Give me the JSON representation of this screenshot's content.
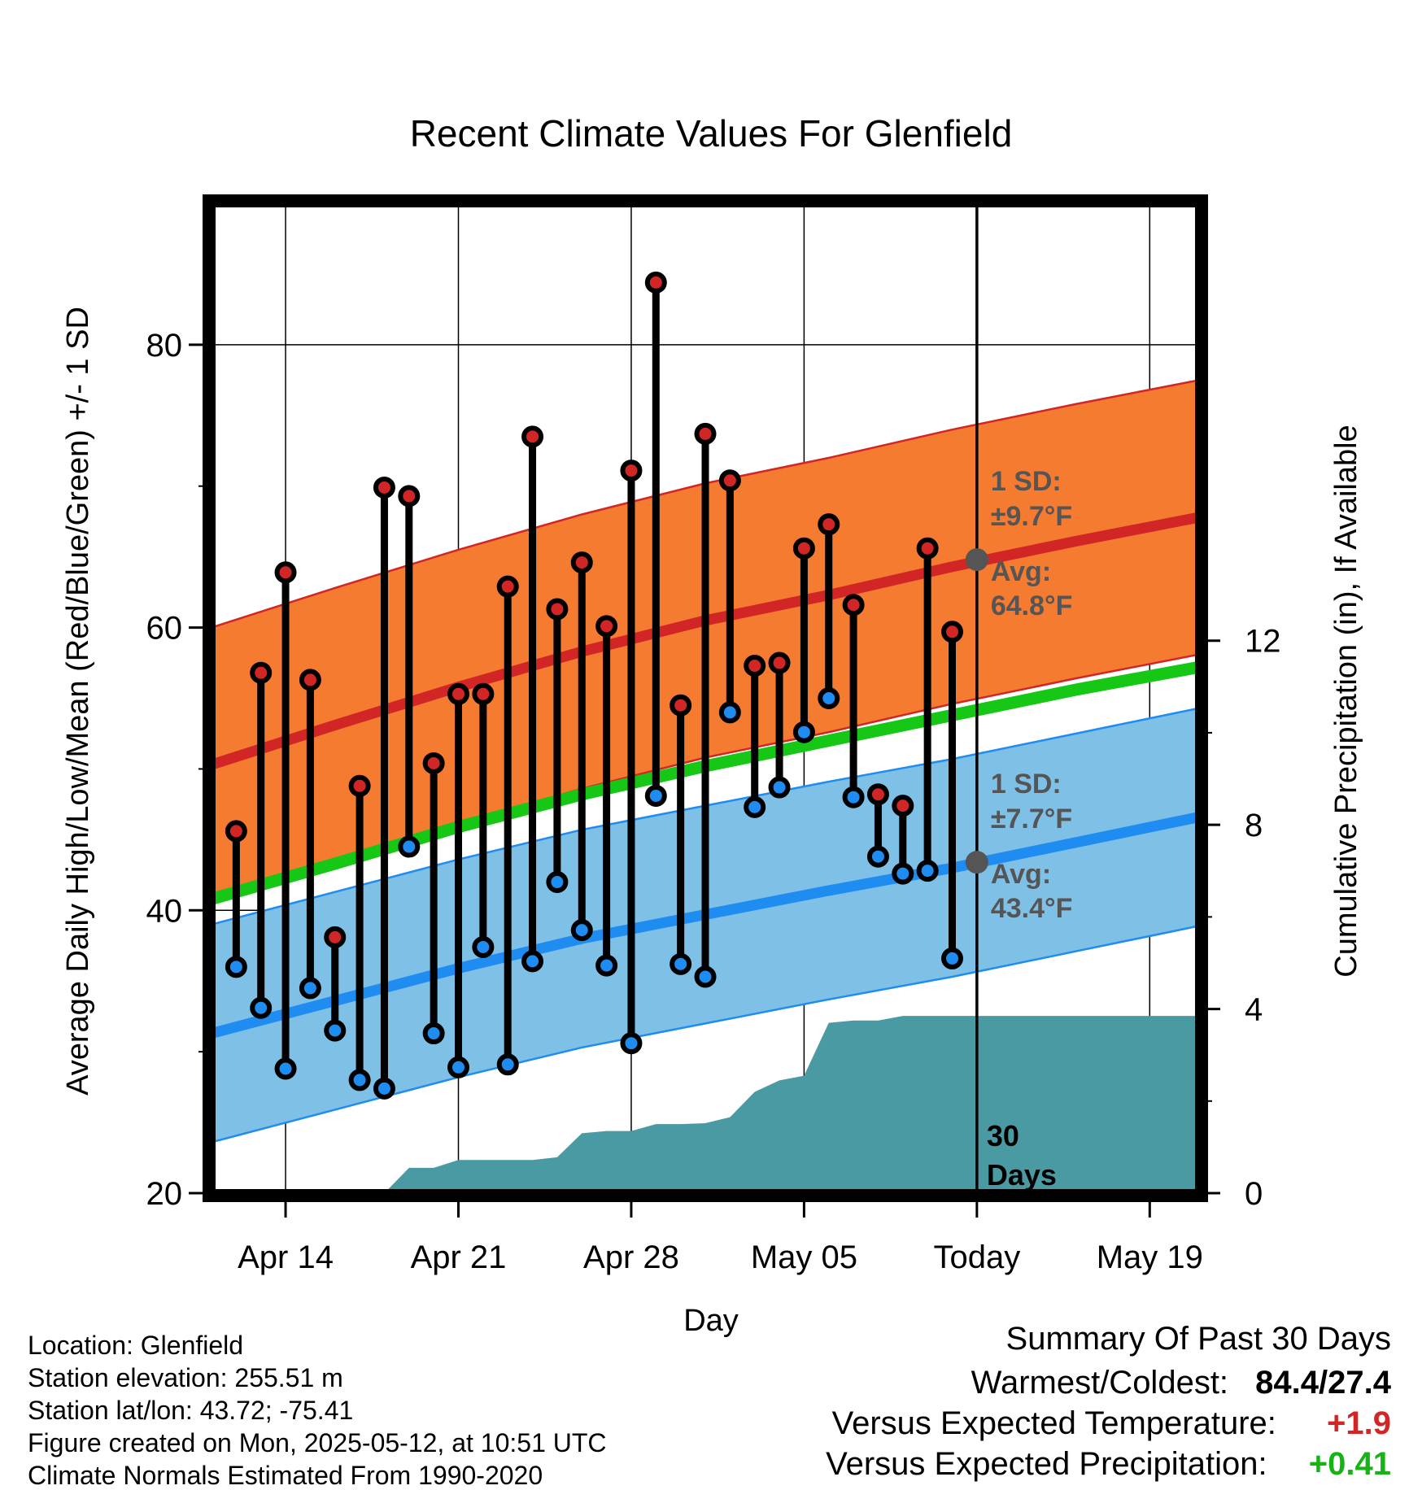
{
  "chart_data": {
    "type": "line",
    "title": "Recent Climate Values For Glenfield",
    "xlabel": "Day",
    "ylabel": "Average Daily High/Low/Mean (Red/Blue/Green) +/- 1 SD",
    "y2label": "Cumulative Precipitation (in), If Available",
    "ylim": [
      20,
      90
    ],
    "y2lim": [
      0,
      21.5
    ],
    "yticks": [
      20,
      40,
      60,
      80
    ],
    "y2ticks": [
      0,
      4,
      8,
      12
    ],
    "xlim": [
      "2025-04-11",
      "2025-05-21"
    ],
    "xticks": [
      {
        "date": "2025-04-14",
        "label": "Apr 14"
      },
      {
        "date": "2025-04-21",
        "label": "Apr 21"
      },
      {
        "date": "2025-04-28",
        "label": "Apr 28"
      },
      {
        "date": "2025-05-05",
        "label": "May 05"
      },
      {
        "date": "2025-05-12",
        "label": "Today"
      },
      {
        "date": "2025-05-19",
        "label": "May 19"
      }
    ],
    "grid": true,
    "today_marker": {
      "date": "2025-05-12",
      "label_line1": "30",
      "label_line2": "Days"
    },
    "normal_high": {
      "dates": [
        "2025-04-11",
        "2025-04-16",
        "2025-04-21",
        "2025-04-26",
        "2025-05-01",
        "2025-05-06",
        "2025-05-11",
        "2025-05-16",
        "2025-05-21"
      ],
      "mean": [
        50.3,
        53.1,
        55.8,
        58.3,
        60.5,
        62.3,
        64.3,
        66.1,
        67.8
      ],
      "sd": 9.7,
      "annotation": {
        "sd_label": "1 SD:",
        "sd_value": "±9.7°F",
        "avg_label": "Avg:",
        "avg_value": "64.8°F",
        "avg_point": 64.8
      }
    },
    "normal_low": {
      "dates": [
        "2025-04-11",
        "2025-04-16",
        "2025-04-21",
        "2025-04-26",
        "2025-05-01",
        "2025-05-06",
        "2025-05-11",
        "2025-05-16",
        "2025-05-21"
      ],
      "mean": [
        31.3,
        33.6,
        35.9,
        38.0,
        39.7,
        41.4,
        43.0,
        44.8,
        46.6
      ],
      "sd": 7.7,
      "annotation": {
        "sd_label": "1 SD:",
        "sd_value": "±7.7°F",
        "avg_label": "Avg:",
        "avg_value": "43.4°F",
        "avg_point": 43.4
      }
    },
    "normal_mean": {
      "dates": [
        "2025-04-11",
        "2025-04-16",
        "2025-04-21",
        "2025-04-26",
        "2025-05-01",
        "2025-05-06",
        "2025-05-11",
        "2025-05-16",
        "2025-05-21"
      ],
      "values": [
        40.8,
        43.3,
        45.9,
        48.2,
        50.2,
        52.0,
        53.8,
        55.6,
        57.2
      ]
    },
    "daily": {
      "dates": [
        "2025-04-12",
        "2025-04-13",
        "2025-04-14",
        "2025-04-15",
        "2025-04-16",
        "2025-04-17",
        "2025-04-18",
        "2025-04-19",
        "2025-04-20",
        "2025-04-21",
        "2025-04-22",
        "2025-04-23",
        "2025-04-24",
        "2025-04-25",
        "2025-04-26",
        "2025-04-27",
        "2025-04-28",
        "2025-04-29",
        "2025-04-30",
        "2025-05-01",
        "2025-05-02",
        "2025-05-03",
        "2025-05-04",
        "2025-05-05",
        "2025-05-06",
        "2025-05-07",
        "2025-05-08",
        "2025-05-09",
        "2025-05-10",
        "2025-05-11"
      ],
      "high": [
        45.6,
        56.8,
        63.9,
        56.3,
        38.1,
        48.8,
        69.9,
        69.3,
        50.4,
        55.3,
        55.3,
        62.9,
        73.5,
        61.3,
        64.6,
        60.1,
        71.1,
        84.4,
        54.5,
        73.7,
        70.4,
        57.3,
        57.5,
        65.6,
        67.3,
        61.6,
        48.2,
        47.4,
        65.6,
        59.7
      ],
      "low": [
        36.0,
        33.1,
        28.8,
        34.5,
        31.5,
        28.0,
        27.4,
        44.5,
        31.3,
        28.9,
        37.4,
        29.1,
        36.4,
        42.0,
        38.6,
        36.1,
        30.6,
        48.1,
        36.2,
        35.3,
        54.0,
        47.3,
        48.7,
        52.6,
        55.0,
        48.0,
        43.8,
        42.6,
        42.8,
        36.6
      ]
    },
    "precipitation": {
      "dates": [
        "2025-04-17",
        "2025-04-18",
        "2025-04-19",
        "2025-04-20",
        "2025-04-21",
        "2025-04-22",
        "2025-04-23",
        "2025-04-24",
        "2025-04-25",
        "2025-04-26",
        "2025-04-27",
        "2025-04-28",
        "2025-04-29",
        "2025-04-30",
        "2025-05-01",
        "2025-05-02",
        "2025-05-03",
        "2025-05-04",
        "2025-05-05",
        "2025-05-06",
        "2025-05-07",
        "2025-05-08",
        "2025-05-09",
        "2025-05-10",
        "2025-05-21"
      ],
      "cumulative": [
        0.0,
        0.0,
        0.55,
        0.55,
        0.72,
        0.72,
        0.72,
        0.72,
        0.78,
        1.3,
        1.35,
        1.35,
        1.5,
        1.5,
        1.52,
        1.65,
        2.2,
        2.45,
        2.55,
        3.7,
        3.75,
        3.75,
        3.85,
        3.85,
        3.85
      ]
    }
  },
  "location_info": {
    "location": "Location: Glenfield",
    "elevation": "Station elevation: 255.51 m",
    "latlon": "Station lat/lon: 43.72; -75.41",
    "created": "Figure created on Mon, 2025-05-12, at 10:51 UTC",
    "normals": "Climate Normals Estimated From 1990-2020"
  },
  "summary": {
    "title": "Summary Of Past 30 Days",
    "warm_cold_label": "Warmest/Coldest:",
    "warm_cold_value": "84.4/27.4",
    "temp_label": "Versus Expected Temperature:",
    "temp_value": "+1.9",
    "precip_label": "Versus Expected Precipitation:",
    "precip_value": "+0.41"
  },
  "colors": {
    "high_band": "#f47b30",
    "high_line": "#d22626",
    "low_band": "#7fc0e6",
    "low_line": "#1e8cf0",
    "mean_line": "#16c716",
    "precip_fill": "#4a9aa4",
    "annotation_text": "#555555",
    "summary_warm": "#d22626",
    "summary_wet": "#16b316"
  }
}
